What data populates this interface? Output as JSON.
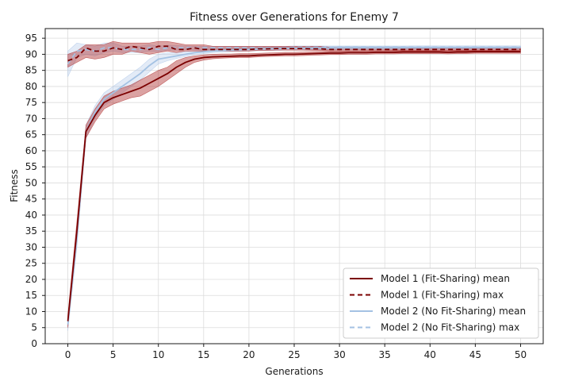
{
  "chart_data": {
    "type": "line",
    "title": "Fitness over Generations for Enemy 7",
    "xlabel": "Generations",
    "ylabel": "Fitness",
    "xlim": [
      -2.5,
      52.5
    ],
    "ylim": [
      0,
      98
    ],
    "xticks": [
      0,
      5,
      10,
      15,
      20,
      25,
      30,
      35,
      40,
      45,
      50
    ],
    "yticks": [
      0,
      5,
      10,
      15,
      20,
      25,
      30,
      35,
      40,
      45,
      50,
      55,
      60,
      65,
      70,
      75,
      80,
      85,
      90,
      95
    ],
    "grid": true,
    "legend_position": "lower-right",
    "x": [
      0,
      1,
      2,
      3,
      4,
      5,
      6,
      7,
      8,
      9,
      10,
      11,
      12,
      13,
      14,
      15,
      16,
      17,
      18,
      19,
      20,
      21,
      22,
      23,
      24,
      25,
      26,
      27,
      28,
      29,
      30,
      31,
      32,
      33,
      34,
      35,
      36,
      37,
      38,
      39,
      40,
      41,
      42,
      43,
      44,
      45,
      46,
      47,
      48,
      49,
      50
    ],
    "series": [
      {
        "name": "Model 1 (Fit-Sharing) mean",
        "color": "#7b0000",
        "dash": "solid",
        "band_color": "#b03030",
        "values": [
          7,
          35,
          66,
          71,
          75,
          76.5,
          77.5,
          78.5,
          79.5,
          81,
          82.5,
          84,
          86,
          87.5,
          88.5,
          89,
          89.2,
          89.3,
          89.4,
          89.5,
          89.5,
          89.7,
          89.8,
          89.9,
          90,
          90,
          90.1,
          90.2,
          90.3,
          90.4,
          90.4,
          90.5,
          90.5,
          90.5,
          90.6,
          90.6,
          90.6,
          90.7,
          90.7,
          90.7,
          90.7,
          90.7,
          90.6,
          90.7,
          90.7,
          90.8,
          90.8,
          90.8,
          90.8,
          90.8,
          90.8
        ],
        "band_low": [
          5,
          32,
          64,
          69,
          73,
          74.5,
          75.5,
          76.5,
          77,
          78.5,
          80,
          82,
          84,
          86,
          87.5,
          88.2,
          88.6,
          88.8,
          88.9,
          89,
          89,
          89.2,
          89.3,
          89.4,
          89.5,
          89.5,
          89.6,
          89.7,
          89.8,
          89.9,
          89.9,
          90,
          90,
          90,
          90.1,
          90.1,
          90.1,
          90.2,
          90.2,
          90.2,
          90.2,
          90.2,
          90.1,
          90.2,
          90.2,
          90.3,
          90.3,
          90.3,
          90.3,
          90.3,
          90.3
        ],
        "band_high": [
          9,
          38,
          68,
          73,
          77,
          78.5,
          79.5,
          80.5,
          82,
          83.5,
          85,
          86,
          88,
          89,
          89.5,
          89.8,
          90,
          90.1,
          90.1,
          90.2,
          90.2,
          90.3,
          90.4,
          90.5,
          90.6,
          90.6,
          90.7,
          90.8,
          90.9,
          91,
          91,
          91,
          91,
          91.1,
          91.1,
          91.1,
          91.2,
          91.2,
          91.2,
          91.2,
          91.2,
          91.2,
          91.2,
          91.3,
          91.3,
          91.3,
          91.3,
          91.3,
          91.3,
          91.3,
          91.3
        ]
      },
      {
        "name": "Model 1 (Fit-Sharing) max",
        "color": "#7b0000",
        "dash": "dashed",
        "band_color": "#b03030",
        "values": [
          88,
          89,
          92,
          91,
          91,
          92,
          91.5,
          92.5,
          92,
          91.5,
          92.5,
          92.5,
          91.5,
          91.5,
          92,
          91.5,
          91.5,
          91.5,
          91.5,
          91.5,
          91.5,
          91.7,
          91.7,
          91.8,
          91.8,
          91.8,
          91.8,
          91.7,
          91.7,
          91.5,
          91.5,
          91.5,
          91.5,
          91.5,
          91.5,
          91.5,
          91.5,
          91.5,
          91.5,
          91.5,
          91.5,
          91.5,
          91.5,
          91.5,
          91.5,
          91.5,
          91.5,
          91.5,
          91.5,
          91.5,
          91.5
        ],
        "band_low": [
          86,
          87.5,
          89,
          88.5,
          89,
          90,
          90,
          91,
          90.5,
          90,
          90.5,
          91,
          90.5,
          91,
          91,
          91,
          91,
          91,
          91,
          91,
          91,
          91.2,
          91.2,
          91.3,
          91.3,
          91.3,
          91.3,
          91.2,
          91.2,
          91,
          91,
          91,
          91,
          91,
          91,
          91,
          91,
          91,
          91,
          91,
          91,
          91,
          91,
          91,
          91,
          91,
          91,
          91,
          91,
          91,
          91
        ],
        "band_high": [
          90,
          91,
          93,
          93,
          93,
          94,
          93.5,
          93.5,
          93.5,
          93.5,
          94,
          94,
          93.5,
          93,
          93,
          93,
          92.5,
          92.5,
          92.5,
          92.5,
          92.5,
          92.5,
          92.5,
          92.5,
          92.5,
          92.5,
          92.5,
          92.5,
          92.5,
          92.2,
          92.2,
          92.2,
          92.2,
          92.2,
          92.2,
          92.2,
          92.2,
          92.2,
          92.2,
          92.2,
          92.2,
          92.2,
          92.2,
          92.2,
          92.2,
          92.2,
          92.2,
          92.2,
          92.2,
          92.2,
          92.2
        ]
      },
      {
        "name": "Model 2 (No Fit-Sharing) mean",
        "color": "#a4c2e3",
        "dash": "solid",
        "band_color": "#aec7e8",
        "values": [
          6,
          33,
          66,
          72,
          76,
          78,
          80,
          82,
          84,
          86.5,
          88.5,
          89,
          89.5,
          90,
          90.5,
          90.8,
          91,
          91.2,
          91.3,
          91.4,
          91.5,
          91.6,
          91.7,
          91.7,
          91.8,
          91.8,
          91.8,
          91.9,
          91.9,
          91.9,
          92,
          92,
          92,
          92,
          92,
          92,
          92,
          92,
          92.1,
          92.1,
          92.1,
          92.1,
          92.1,
          92.1,
          92.1,
          92.1,
          92.1,
          92.1,
          92.1,
          92.1,
          92.1
        ],
        "band_low": [
          4,
          30,
          64,
          70,
          74,
          76,
          78,
          80,
          82,
          84.5,
          87,
          88,
          88.7,
          89.3,
          89.9,
          90.2,
          90.5,
          90.7,
          90.8,
          90.9,
          91,
          91.1,
          91.2,
          91.2,
          91.3,
          91.3,
          91.3,
          91.4,
          91.4,
          91.4,
          91.5,
          91.5,
          91.5,
          91.5,
          91.5,
          91.5,
          91.5,
          91.5,
          91.6,
          91.6,
          91.6,
          91.6,
          91.6,
          91.6,
          91.6,
          91.6,
          91.6,
          91.6,
          91.6,
          91.6,
          91.6
        ],
        "band_high": [
          8,
          36,
          68,
          74,
          78,
          80,
          82,
          84,
          86,
          88.5,
          90,
          90.5,
          90.5,
          90.8,
          91.1,
          91.3,
          91.5,
          91.7,
          91.8,
          91.9,
          92,
          92.1,
          92.2,
          92.2,
          92.3,
          92.3,
          92.3,
          92.4,
          92.4,
          92.4,
          92.5,
          92.5,
          92.5,
          92.5,
          92.5,
          92.5,
          92.5,
          92.5,
          92.6,
          92.6,
          92.6,
          92.6,
          92.6,
          92.6,
          92.6,
          92.6,
          92.6,
          92.6,
          92.6,
          92.6,
          92.6
        ]
      },
      {
        "name": "Model 2 (No Fit-Sharing) max",
        "color": "#a4c2e3",
        "dash": "dashed",
        "band_color": "#aec7e8",
        "values": [
          87,
          91,
          91.5,
          91,
          92,
          92,
          91.5,
          91.5,
          91.5,
          92,
          91.5,
          92,
          92,
          92,
          92,
          92,
          92,
          92,
          92,
          92,
          92,
          92,
          92,
          92,
          92,
          92.2,
          92.2,
          92.2,
          92.2,
          92.2,
          92.2,
          92.2,
          92.2,
          92.2,
          92.2,
          92.2,
          92.2,
          92.2,
          92.2,
          92.2,
          92.2,
          92.2,
          92.2,
          92.2,
          92.2,
          92.2,
          92.2,
          92.2,
          92.2,
          92.2,
          92.2
        ],
        "band_low": [
          83,
          89,
          90,
          89.5,
          90.5,
          91,
          90.5,
          90.5,
          90.5,
          91,
          90.8,
          91.3,
          91.3,
          91.4,
          91.5,
          91.5,
          91.5,
          91.5,
          91.6,
          91.6,
          91.6,
          91.6,
          91.7,
          91.7,
          91.7,
          91.8,
          91.8,
          91.8,
          91.8,
          91.8,
          91.8,
          91.8,
          91.8,
          91.8,
          91.8,
          91.8,
          91.8,
          91.8,
          91.8,
          91.8,
          91.8,
          91.8,
          91.8,
          91.8,
          91.8,
          91.8,
          91.8,
          91.8,
          91.8,
          91.8,
          91.8
        ],
        "band_high": [
          91,
          93.5,
          93,
          92.5,
          93.5,
          93.5,
          92.5,
          92.5,
          92.5,
          93,
          92.5,
          92.8,
          92.7,
          92.6,
          92.5,
          92.5,
          92.5,
          92.5,
          92.5,
          92.5,
          92.5,
          92.5,
          92.5,
          92.5,
          92.5,
          92.6,
          92.6,
          92.6,
          92.6,
          92.6,
          92.6,
          92.6,
          92.6,
          92.6,
          92.6,
          92.6,
          92.6,
          92.6,
          92.6,
          92.6,
          92.6,
          92.6,
          92.6,
          92.6,
          92.6,
          92.6,
          92.6,
          92.6,
          92.6,
          92.6,
          92.6
        ]
      }
    ]
  }
}
